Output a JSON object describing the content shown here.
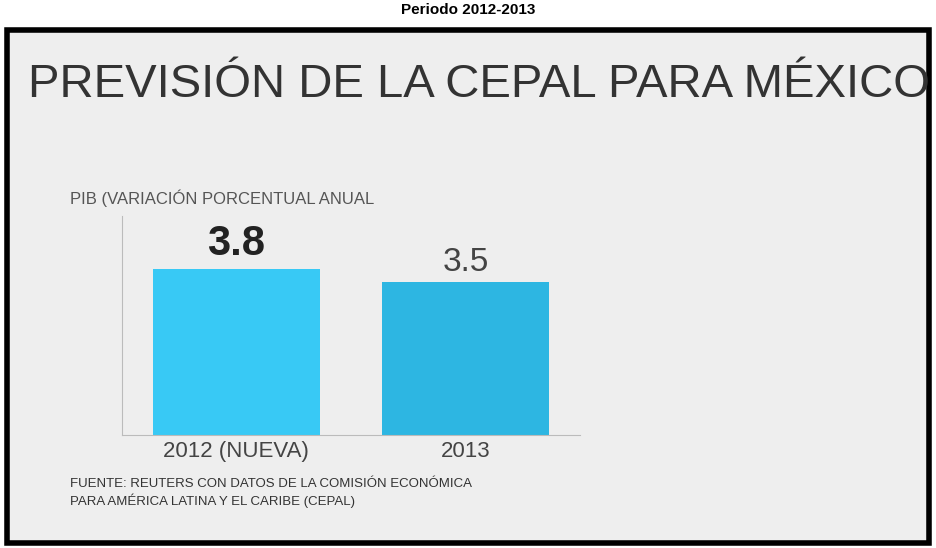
{
  "chart_data": {
    "type": "bar",
    "caption": "Periodo 2012-2013",
    "title": "PREVISIÓN DE LA CEPAL PARA MÉXICO",
    "subtitle": "PIB (VARIACIÓN PORCENTUAL ANUAL",
    "source": "FUENTE: REUTERS CON DATOS DE LA COMISIÓN ECONÓMICA\nPARA AMÉRICA LATINA Y EL CARIBE (CEPAL)",
    "categories": [
      "2012 (NUEVA)",
      "2013"
    ],
    "values": [
      3.8,
      3.5
    ],
    "colors": [
      "#38c9f5",
      "#2db6e2"
    ],
    "ylim": [
      0,
      5
    ],
    "yticks": [],
    "tick_labels": "x",
    "data_labels": true
  }
}
